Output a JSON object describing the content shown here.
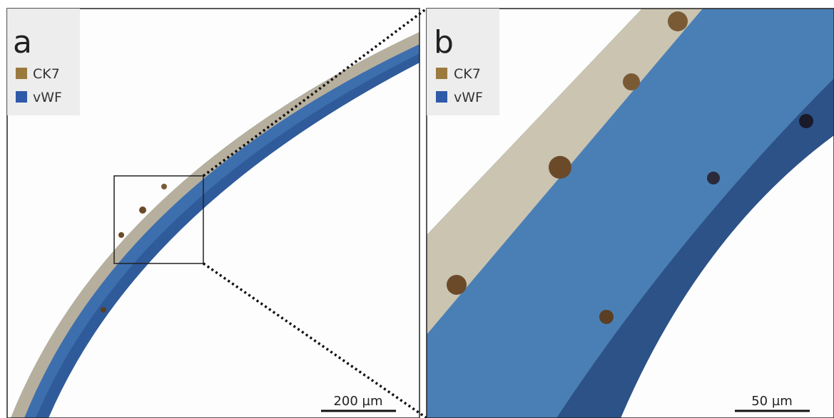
{
  "panels": [
    {
      "label": "a",
      "legend": [
        {
          "text": "CK7",
          "color": "#9b7a3e"
        },
        {
          "text": "vWF",
          "color": "#2f5aa8"
        }
      ],
      "scale_bar": "200 µm"
    },
    {
      "label": "b",
      "legend": [
        {
          "text": "CK7",
          "color": "#9b7a3e"
        },
        {
          "text": "vWF",
          "color": "#2f5aa8"
        }
      ],
      "scale_bar": "50 µm"
    }
  ]
}
